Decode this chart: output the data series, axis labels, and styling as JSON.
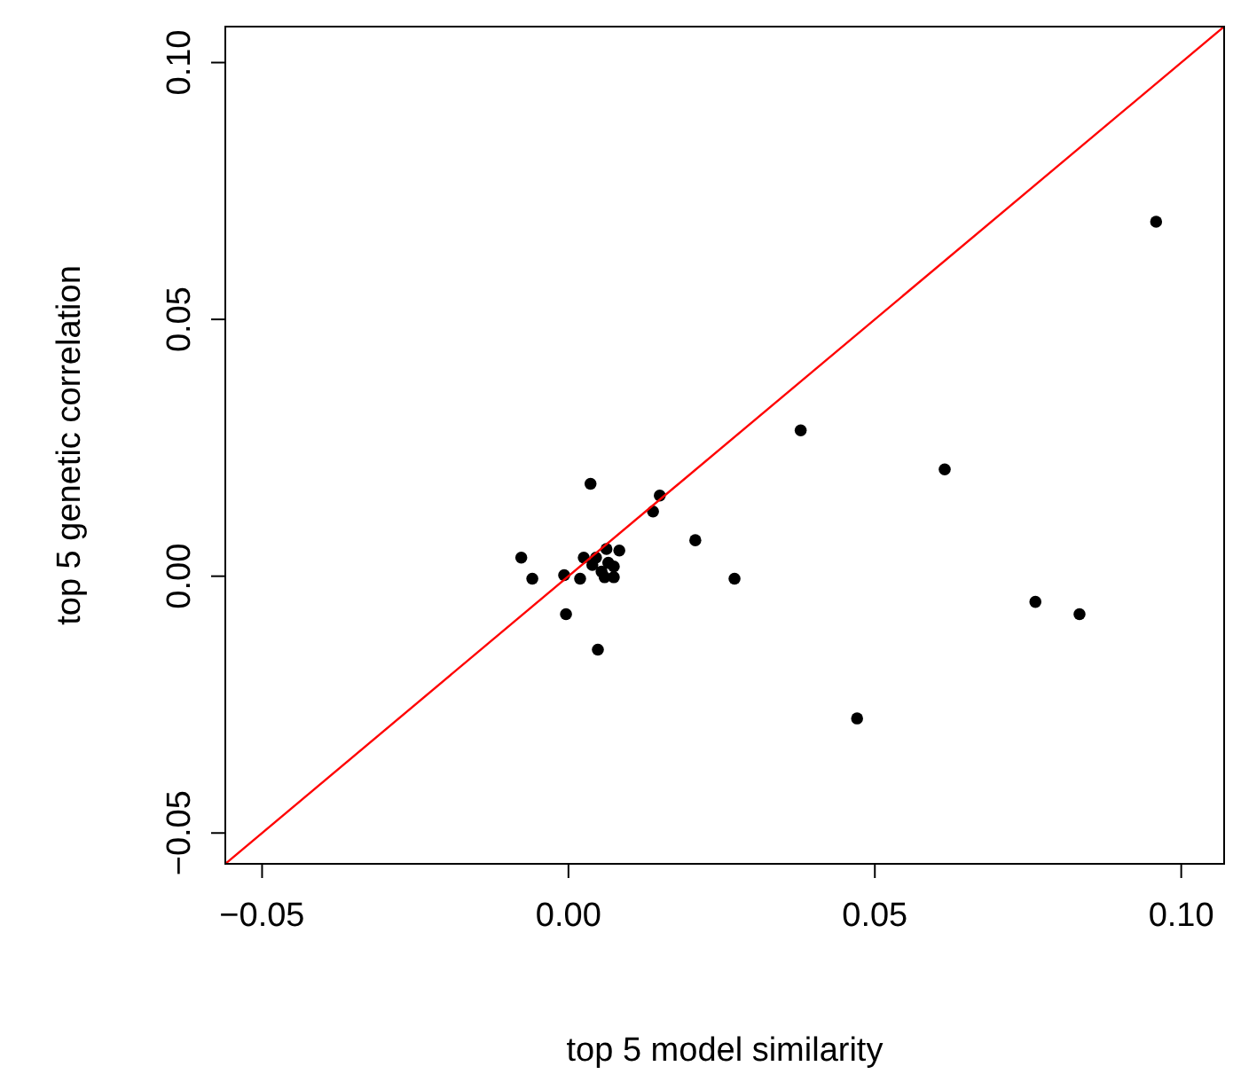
{
  "chart_data": {
    "type": "scatter",
    "xlabel": "top 5 model similarity",
    "ylabel": "top 5 genetic correlation",
    "xlim": [
      -0.056,
      0.107
    ],
    "ylim": [
      -0.056,
      0.107
    ],
    "xticks": [
      {
        "value": -0.05,
        "label": "−0.05"
      },
      {
        "value": 0,
        "label": "0.00"
      },
      {
        "value": 0.05,
        "label": "0.05"
      },
      {
        "value": 0.1,
        "label": "0.10"
      }
    ],
    "yticks": [
      {
        "value": -0.05,
        "label": "−0.05"
      },
      {
        "value": 0,
        "label": "0.00"
      },
      {
        "value": 0.05,
        "label": "0.05"
      },
      {
        "value": 0.1,
        "label": "0.10"
      }
    ],
    "grid": false,
    "series": [
      {
        "marker": "circle",
        "color": "#000000",
        "x": [
          0.0959,
          0.0379,
          0.0614,
          0.0762,
          0.0834,
          0.0471,
          0.0271,
          0.0207,
          0.0149,
          0.0138,
          0.0036,
          -0.0077,
          -0.0059,
          -0.0007,
          -0.0004,
          0.0048,
          0.0019,
          0.0025,
          0.0083,
          0.0062,
          0.0065,
          0.0054,
          0.0074,
          0.0074,
          0.0039,
          0.0045,
          0.0059
        ],
        "values": [
          0.069,
          0.0284,
          0.0208,
          -0.005,
          -0.0074,
          -0.0277,
          -0.0005,
          0.007,
          0.0157,
          0.0126,
          0.018,
          0.0036,
          -0.0005,
          0.0002,
          -0.0074,
          -0.0143,
          -0.0005,
          0.0036,
          0.005,
          0.0053,
          0.0026,
          0.0009,
          0.0019,
          -0.0002,
          0.0022,
          0.0036,
          -0.0002
        ]
      },
      {
        "type": "line",
        "color": "#ff0000",
        "x": [
          -0.056,
          0.107
        ],
        "values": [
          -0.056,
          0.107
        ]
      }
    ]
  }
}
